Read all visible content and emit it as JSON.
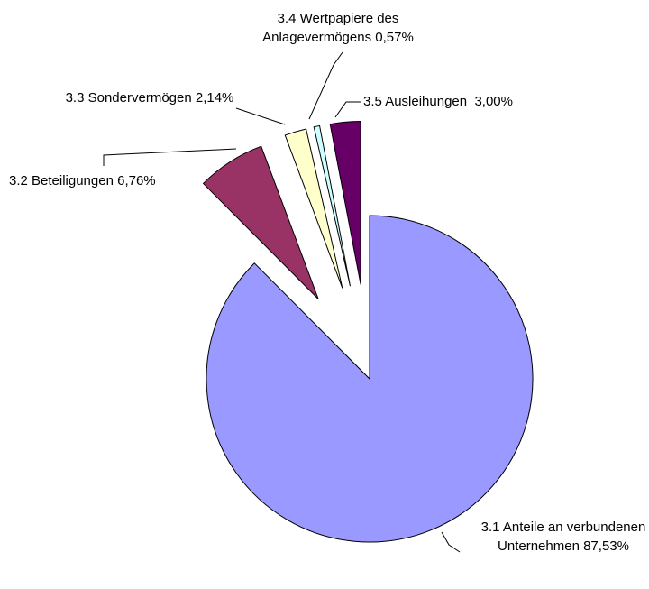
{
  "chart_data": {
    "type": "pie",
    "categories": [
      "3.1 Anteile an verbundenen Unternehmen",
      "3.2 Beteiligungen",
      "3.3 Sondervermögen",
      "3.4 Wertpapiere des Anlagevermögens",
      "3.5 Ausleihungen "
    ],
    "values": [
      87.53,
      6.76,
      2.14,
      0.57,
      3.0
    ],
    "value_labels": [
      "87,53%",
      "6,76%",
      "2,14%",
      "0,57%",
      "3,00%"
    ],
    "colors": [
      "#9999ff",
      "#993366",
      "#ffffcc",
      "#ccffff",
      "#660066"
    ]
  }
}
